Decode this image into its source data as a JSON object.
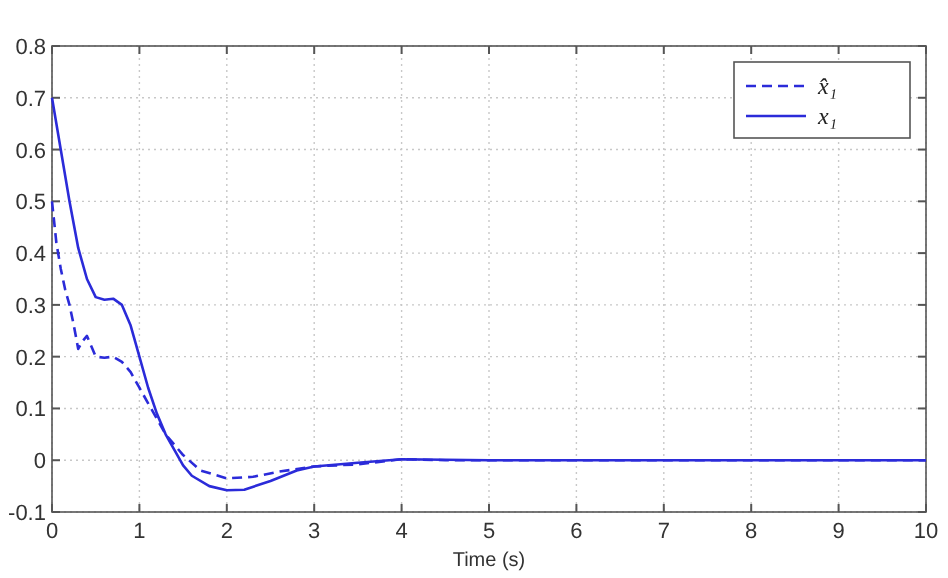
{
  "chart_data": {
    "type": "line",
    "xlabel": "Time (s)",
    "xlim": [
      0,
      10
    ],
    "xticks": [
      0,
      1,
      2,
      3,
      4,
      5,
      6,
      7,
      8,
      9,
      10
    ],
    "ylim": [
      -0.1,
      0.8
    ],
    "yticks": [
      -0.1,
      0,
      0.1,
      0.2,
      0.3,
      0.4,
      0.5,
      0.6,
      0.7,
      0.8
    ],
    "grid": true,
    "legend": "top right",
    "series": [
      {
        "name": "x̂₁",
        "color": "#2b2bd9",
        "line_style": "dashed",
        "x": [
          0,
          0.05,
          0.1,
          0.15,
          0.2,
          0.25,
          0.3,
          0.35,
          0.4,
          0.45,
          0.5,
          0.6,
          0.7,
          0.8,
          0.9,
          1.0,
          1.1,
          1.2,
          1.3,
          1.5,
          1.7,
          2.0,
          2.3,
          2.6,
          3.0,
          3.5,
          4,
          4.5,
          10
        ],
        "values": [
          0.5,
          0.42,
          0.37,
          0.33,
          0.3,
          0.26,
          0.215,
          0.23,
          0.24,
          0.22,
          0.2,
          0.198,
          0.2,
          0.19,
          0.17,
          0.14,
          0.11,
          0.08,
          0.05,
          0.01,
          -0.02,
          -0.035,
          -0.032,
          -0.022,
          -0.012,
          -0.008,
          0.002,
          0,
          0
        ]
      },
      {
        "name": "x₁",
        "color": "#2b2bd9",
        "line_style": "solid",
        "x": [
          0,
          0.1,
          0.2,
          0.3,
          0.4,
          0.5,
          0.6,
          0.7,
          0.8,
          0.9,
          1.0,
          1.1,
          1.2,
          1.3,
          1.4,
          1.5,
          1.6,
          1.8,
          2.0,
          2.2,
          2.5,
          2.8,
          3.0,
          3.5,
          4,
          4.5,
          5,
          10
        ],
        "values": [
          0.7,
          0.6,
          0.5,
          0.41,
          0.35,
          0.315,
          0.31,
          0.312,
          0.3,
          0.26,
          0.2,
          0.14,
          0.09,
          0.05,
          0.02,
          -0.01,
          -0.03,
          -0.05,
          -0.058,
          -0.057,
          -0.04,
          -0.02,
          -0.012,
          -0.005,
          0.002,
          0.001,
          0,
          0
        ]
      }
    ]
  }
}
